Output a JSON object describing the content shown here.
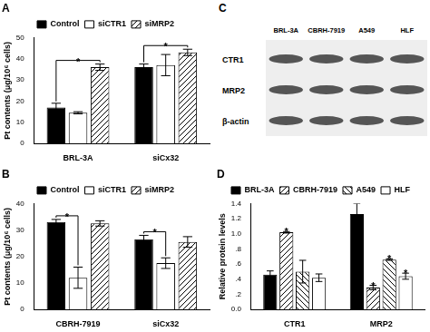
{
  "chart_data": [
    {
      "type": "bar",
      "title": "A",
      "categories": [
        "BRL-3A",
        "siCx32"
      ],
      "ylabel": "Pt contents (μg/10⁶ cells)",
      "series": [
        {
          "name": "Control",
          "color": "#000000",
          "values": [
            17,
            36
          ],
          "errors": [
            2,
            1.5
          ]
        },
        {
          "name": "siCTR1",
          "color": "#ffffff",
          "values": [
            14.5,
            37
          ],
          "errors": [
            0.5,
            5
          ]
        },
        {
          "name": "siMRP2",
          "color": "#808080",
          "values": [
            36,
            43
          ],
          "errors": [
            1.5,
            1.5
          ]
        }
      ],
      "ylim": [
        0,
        50
      ],
      "yticks": [
        0,
        10,
        20,
        30,
        40,
        50
      ],
      "grid": false,
      "legend": "top",
      "annotations": [
        {
          "text": "*",
          "category": 0,
          "from_series": 0,
          "to_series": 2
        },
        {
          "text": "*",
          "category": 1,
          "from_series": 0,
          "to_series": 2
        }
      ]
    },
    {
      "type": "bar",
      "title": "B",
      "categories": [
        "CBRH-7919",
        "siCx32"
      ],
      "ylabel": "Pt contents (μg/10⁶ cells)",
      "series": [
        {
          "name": "Control",
          "color": "#000000",
          "values": [
            33,
            26.5
          ],
          "errors": [
            1,
            1.5
          ]
        },
        {
          "name": "siCTR1",
          "color": "#ffffff",
          "values": [
            12,
            17.5
          ],
          "errors": [
            4,
            2
          ]
        },
        {
          "name": "siMRP2",
          "color": "#808080",
          "values": [
            32.5,
            25.5
          ],
          "errors": [
            1,
            2
          ]
        }
      ],
      "ylim": [
        0,
        40
      ],
      "yticks": [
        0,
        10,
        20,
        30,
        40
      ],
      "grid": false,
      "legend": "top",
      "annotations": [
        {
          "text": "*",
          "category": 0,
          "from_series": 0,
          "to_series": 1
        },
        {
          "text": "*",
          "category": 1,
          "from_series": 0,
          "to_series": 1
        }
      ]
    },
    {
      "type": "bar",
      "title": "D",
      "categories": [
        "CTR1",
        "MRP2"
      ],
      "ylabel": "Relative protein levels",
      "series": [
        {
          "name": "BRL-3A",
          "color": "#000000",
          "values": [
            0.46,
            1.26
          ],
          "errors": [
            0.05,
            0.14
          ]
        },
        {
          "name": "CBRH-7919",
          "color": "#808080",
          "values": [
            1.02,
            0.29
          ],
          "errors": [
            0.01,
            0.03
          ]
        },
        {
          "name": "A549",
          "color": "#c0c0c0",
          "values": [
            0.5,
            0.66
          ],
          "errors": [
            0.15,
            0.01
          ]
        },
        {
          "name": "HLF",
          "color": "#ffffff",
          "values": [
            0.42,
            0.44
          ],
          "errors": [
            0.05,
            0.04
          ]
        }
      ],
      "ylim": [
        0,
        1.4
      ],
      "yticks": [
        {
          "value": 0,
          "label": "0.0"
        },
        {
          "value": 0.2,
          "label": ".2"
        },
        {
          "value": 0.4,
          "label": ".4"
        },
        {
          "value": 0.6,
          "label": ".6"
        },
        {
          "value": 0.8,
          "label": ".8"
        },
        {
          "value": 1,
          "label": "1.0"
        },
        1.2,
        1.4
      ],
      "grid": false,
      "legend": "top",
      "annotations": [
        {
          "text": "*",
          "category": 0,
          "series": 1
        },
        {
          "text": "*",
          "category": 1,
          "series": 1
        },
        {
          "text": "*",
          "category": 1,
          "series": 2
        },
        {
          "text": "*",
          "category": 1,
          "series": 3
        }
      ]
    }
  ],
  "blot": {
    "title": "C",
    "columns": [
      "BRL-3A",
      "CBRH-7919",
      "A549",
      "HLF"
    ],
    "rows": [
      "CTR1",
      "MRP2",
      "β-actin"
    ]
  }
}
